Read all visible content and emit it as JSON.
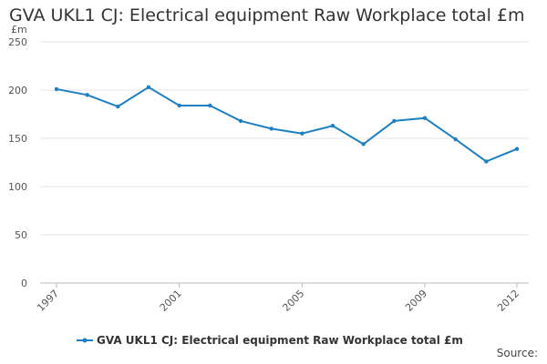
{
  "title": "GVA UKL1 CJ: Electrical equipment Raw Workplace total £m",
  "unit_label": "£m",
  "source_label": "Source:",
  "colors": {
    "series": "#1f7fbf",
    "grid": "#e6e6e6",
    "axis": "#bbbbbb"
  },
  "chart_data": {
    "type": "line",
    "title": "GVA UKL1 CJ: Electrical equipment Raw Workplace total £m",
    "xlabel": "",
    "ylabel": "£m",
    "ylim": [
      0,
      250
    ],
    "yticks": [
      0,
      50,
      100,
      150,
      200,
      250
    ],
    "xticks": [
      1997,
      2001,
      2005,
      2009,
      2012
    ],
    "grid": true,
    "legend": "bottom",
    "x": [
      1997,
      1998,
      1999,
      2000,
      2001,
      2002,
      2003,
      2004,
      2005,
      2006,
      2007,
      2008,
      2009,
      2010,
      2011,
      2012
    ],
    "series": [
      {
        "name": "GVA UKL1 CJ: Electrical equipment Raw Workplace total £m",
        "values": [
          201,
          195,
          183,
          203,
          184,
          184,
          168,
          160,
          155,
          163,
          144,
          168,
          171,
          149,
          126,
          139
        ]
      }
    ]
  }
}
